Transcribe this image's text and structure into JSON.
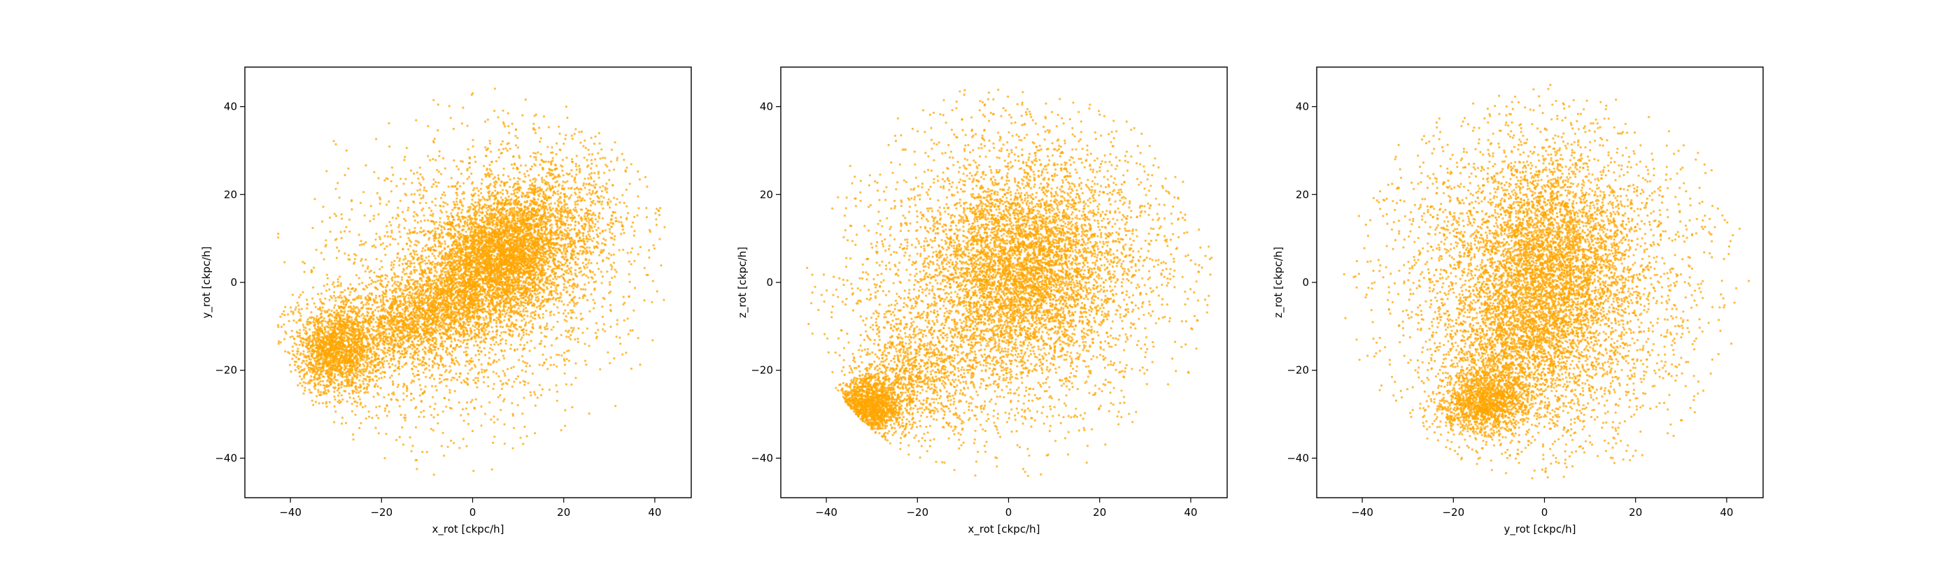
{
  "figure": {
    "background": "#ffffff",
    "point_color": "#ffa500"
  },
  "chart_data": [
    {
      "type": "scatter",
      "xlabel": "x_rot [ckpc/h]",
      "ylabel": "y_rot [ckpc/h]",
      "xlim": [
        -50,
        48
      ],
      "ylim": [
        -49,
        49
      ],
      "xticks": [
        -40,
        -20,
        0,
        20,
        40
      ],
      "yticks": [
        -40,
        -20,
        0,
        20,
        40
      ],
      "grid": false,
      "clusters": [
        {
          "n": 3200,
          "cx": 0,
          "cy": 0,
          "sx": 18,
          "sy": 17,
          "rho": 0.35
        },
        {
          "n": 2600,
          "cx": 6,
          "cy": 5,
          "sx": 8,
          "sy": 7,
          "rho": 0.3
        },
        {
          "n": 1800,
          "cx": 9,
          "cy": 9,
          "sx": 10,
          "sy": 9,
          "rho": 0.4
        },
        {
          "n": 1600,
          "cx": -30,
          "cy": -15,
          "sx": 4.5,
          "sy": 5,
          "rho": 0.1
        },
        {
          "n": 1600,
          "cx": -12,
          "cy": -8,
          "sx": 9,
          "sy": 6,
          "rho": 0.5
        }
      ]
    },
    {
      "type": "scatter",
      "xlabel": "x_rot [ckpc/h]",
      "ylabel": "z_rot [ckpc/h]",
      "xlim": [
        -50,
        48
      ],
      "ylim": [
        -49,
        49
      ],
      "xticks": [
        -40,
        -20,
        0,
        20,
        40
      ],
      "yticks": [
        -40,
        -20,
        0,
        20,
        40
      ],
      "grid": false,
      "clusters": [
        {
          "n": 3800,
          "cx": 2,
          "cy": 2,
          "sx": 18,
          "sy": 18,
          "rho": 0.1
        },
        {
          "n": 3200,
          "cx": 3,
          "cy": 3,
          "sx": 10,
          "sy": 11,
          "rho": 0.1
        },
        {
          "n": 1500,
          "cx": -31,
          "cy": -28,
          "sx": 3.5,
          "sy": 3.5,
          "rho": 0.1
        },
        {
          "n": 1000,
          "cx": -22,
          "cy": -22,
          "sx": 7,
          "sy": 7,
          "rho": 0.2
        }
      ]
    },
    {
      "type": "scatter",
      "xlabel": "y_rot [ckpc/h]",
      "ylabel": "z_rot [ckpc/h]",
      "xlim": [
        -50,
        48
      ],
      "ylim": [
        -49,
        49
      ],
      "xticks": [
        -40,
        -20,
        0,
        20,
        40
      ],
      "yticks": [
        -40,
        -20,
        0,
        20,
        40
      ],
      "grid": false,
      "clusters": [
        {
          "n": 3800,
          "cx": 0,
          "cy": 0,
          "sx": 17,
          "sy": 19,
          "rho": 0.0
        },
        {
          "n": 3200,
          "cx": 1,
          "cy": 2,
          "sx": 9,
          "sy": 12,
          "rho": 0.0
        },
        {
          "n": 1400,
          "cx": -13,
          "cy": -27,
          "sx": 5,
          "sy": 4,
          "rho": 0.1
        },
        {
          "n": 1000,
          "cx": -8,
          "cy": -15,
          "sx": 7,
          "sy": 8,
          "rho": 0.1
        }
      ]
    }
  ]
}
